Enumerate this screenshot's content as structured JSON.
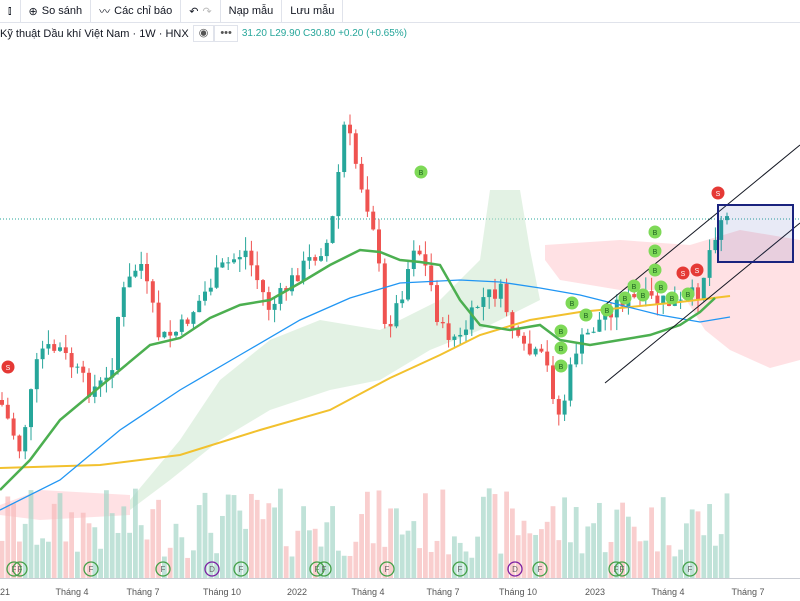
{
  "toolbar": {
    "compare_label": "So sánh",
    "indicators_label": "Các chỉ báo",
    "load_template_label": "Nạp mẫu",
    "save_template_label": "Lưu mẫu"
  },
  "legend": {
    "title": "Kỹ thuật Dầu khí Việt Nam · 1W · HNX",
    "ohlc": "31.20 L29.90 C30.80 +0.20 (+0.65%)"
  },
  "x_axis": [
    "21",
    "Tháng 4",
    "Tháng 7",
    "Tháng 10",
    "2022",
    "Tháng 4",
    "Tháng 7",
    "Tháng 10",
    "2023",
    "Tháng 4",
    "Tháng 7"
  ],
  "markers": {
    "buy": "B",
    "sell": "S"
  },
  "events": [
    "F",
    "F",
    "F",
    "F",
    "D",
    "F",
    "F",
    "F",
    "F",
    "F",
    "D",
    "F",
    "F",
    "F",
    "F"
  ],
  "colors": {
    "up": "#26a69a",
    "down": "#ef5350",
    "ma_fast": "#4caf50",
    "ma_mid": "#2196f3",
    "ma_slow": "#f2c12e",
    "selection_box": "#1a237e"
  }
}
